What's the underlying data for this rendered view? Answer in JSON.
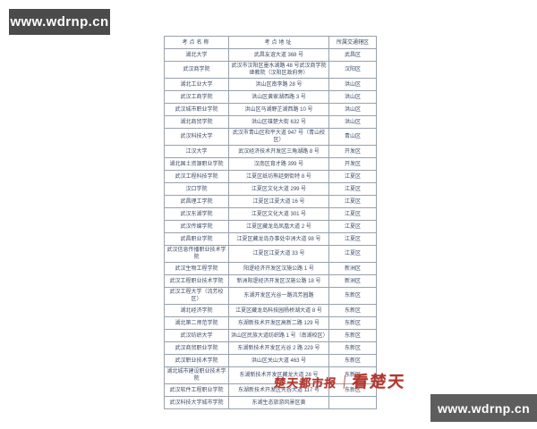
{
  "watermarks": {
    "top_left": "www.wdrnp.cn",
    "bottom_right": "www.wdrnp.cn"
  },
  "press_watermark": {
    "name": "楚天都市报",
    "divider": "｜",
    "slogan": "看楚天",
    "color": "#b23730"
  },
  "colors": {
    "watermark_box_bg": "#4b4b4b",
    "table_border": "#98a1ad",
    "table_text": "#3c4a66"
  },
  "table": {
    "headers": [
      "考点名称",
      "考点地址",
      "所属交通辖区"
    ],
    "rows": [
      {
        "name": "湖北大学",
        "address": "武昌友谊大道 368 号",
        "district": "武昌区"
      },
      {
        "name": "武汉商学院",
        "address": "武汉市汉阳区墨水湖路 48 号武汉商学院继教院（汉阳区政府旁）",
        "district": "汉阳区"
      },
      {
        "name": "湖北工业大学",
        "address": "洪山区南李路 28 号",
        "district": "洪山区"
      },
      {
        "name": "武汉工商学院",
        "address": "洪山区黄家湖西路 3 号",
        "district": "洪山区"
      },
      {
        "name": "武汉城市职业学院",
        "address": "洪山区马湖野芷湖西路 10 号",
        "district": "洪山区"
      },
      {
        "name": "湖北商贸学院",
        "address": "洪山区雄楚大街 632 号",
        "district": "洪山区"
      },
      {
        "name": "武汉科技大学",
        "address": "武汉市青山区和平大道 947 号（青山校区）",
        "district": "青山区"
      },
      {
        "name": "江汉大学",
        "address": "武汉经济技术开发区三角湖路 8 号",
        "district": "开发区"
      },
      {
        "name": "湖北国土资源职业学院",
        "address": "汉南区育才路 399 号",
        "district": "开发区"
      },
      {
        "name": "武汉工程科技学院",
        "address": "江夏区纸坊熊廷弼街特 8 号",
        "district": "江夏区"
      },
      {
        "name": "汉口学院",
        "address": "江夏区文化大道 299 号",
        "district": "江夏区"
      },
      {
        "name": "武昌理工学院",
        "address": "江夏区江夏大道 16 号",
        "district": "江夏区"
      },
      {
        "name": "武汉东湖学院",
        "address": "江夏区文化大道 301 号",
        "district": "江夏区"
      },
      {
        "name": "武汉传媒学院",
        "address": "江夏区藏龙岛凤凰大道 2 号",
        "district": "江夏区"
      },
      {
        "name": "武昌职业学院",
        "address": "江夏区藏龙岛办事处中洲大道 98 号",
        "district": "江夏区"
      },
      {
        "name": "武汉信息传播职业技术学院",
        "address": "江夏区江夏大道 33 号",
        "district": "江夏区"
      },
      {
        "name": "武汉生物工程学院",
        "address": "阳逻经济开发区汉施公路 1 号",
        "district": "新洲区"
      },
      {
        "name": "武汉工程职业技术学院",
        "address": "新洲阳逻经济开发区汉施公路 18 号",
        "district": "新洲区"
      },
      {
        "name": "武汉工程大学（流芳校区）",
        "address": "东湖开发区光谷一路流芳园路",
        "district": "东新区"
      },
      {
        "name": "湖北经济学院",
        "address": "江夏区藏龙岛科技园杨桥湖大道 8 号",
        "district": "东新区"
      },
      {
        "name": "湖北第二师范学院",
        "address": "东湖新技术开发区高新二路 129 号",
        "district": "东新区"
      },
      {
        "name": "武汉纺织大学",
        "address": "洪山区民族大道纺织路 1 号（南湖校区）",
        "district": "东新区"
      },
      {
        "name": "武汉商贸职业学院",
        "address": "东湖新技术开发区光谷 2 路 229 号",
        "district": "东新区"
      },
      {
        "name": "武汉职业技术学院",
        "address": "洪山区关山大道 463 号",
        "district": "东新区"
      },
      {
        "name": "湖北城市建设职业技术学院",
        "address": "东湖新技术开发区藏龙大道 28 号",
        "district": "东新区"
      },
      {
        "name": "武汉软件工程职业学院",
        "address": "东湖新技术开发区光谷大道 117 号",
        "district": "东新区"
      },
      {
        "name": "武汉科技大学城市学院",
        "address": "东湖生态旅游风景区黄",
        "district": ""
      }
    ]
  }
}
